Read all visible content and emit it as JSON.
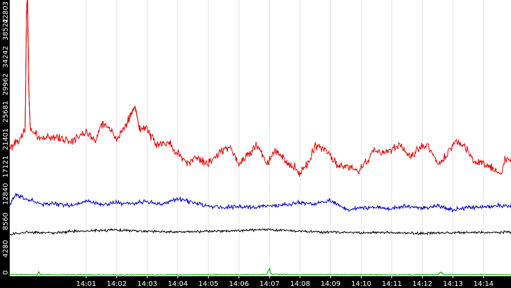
{
  "chart_data": {
    "type": "line",
    "title": "",
    "xlabel": "",
    "ylabel": "",
    "background": "#ffffff",
    "axis_band_color": "#000000",
    "axis_text_color": "#ffffff",
    "grid": true,
    "grid_color": "#e4e4e4",
    "legend": "none",
    "xlim": [
      -1.5,
      14.9
    ],
    "ylim": [
      0,
      42803
    ],
    "x_ticks": [
      {
        "value": 1,
        "label": "14:01"
      },
      {
        "value": 2,
        "label": "14:02"
      },
      {
        "value": 3,
        "label": "14:03"
      },
      {
        "value": 4,
        "label": "14:04"
      },
      {
        "value": 5,
        "label": "14:05"
      },
      {
        "value": 6,
        "label": "14:06"
      },
      {
        "value": 7,
        "label": "14:07"
      },
      {
        "value": 8,
        "label": "14:08"
      },
      {
        "value": 9,
        "label": "14:09"
      },
      {
        "value": 10,
        "label": "14:10"
      },
      {
        "value": 11,
        "label": "14:11"
      },
      {
        "value": 12,
        "label": "14:12"
      },
      {
        "value": 13,
        "label": "14:13"
      },
      {
        "value": 14,
        "label": "14:14"
      }
    ],
    "y_ticks": [
      {
        "value": 0,
        "label": "0"
      },
      {
        "value": 4280,
        "label": "4280"
      },
      {
        "value": 8560,
        "label": "8560"
      },
      {
        "value": 12840,
        "label": "12840"
      },
      {
        "value": 17121,
        "label": "17121"
      },
      {
        "value": 21401,
        "label": "21401"
      },
      {
        "value": 25681,
        "label": "25681"
      },
      {
        "value": 29962,
        "label": "29962"
      },
      {
        "value": 34242,
        "label": "34242"
      },
      {
        "value": 38522,
        "label": "38522"
      },
      {
        "value": 42803,
        "label": "42803"
      }
    ],
    "series": [
      {
        "color": "#e00000",
        "noise": 650,
        "points": [
          [
            -1.5,
            20000
          ],
          [
            -1.0,
            22500
          ],
          [
            -0.95,
            41000
          ],
          [
            -0.92,
            44000
          ],
          [
            -0.88,
            30000
          ],
          [
            -0.83,
            23000
          ],
          [
            -0.5,
            21500
          ],
          [
            0,
            21800
          ],
          [
            0.5,
            21000
          ],
          [
            1.0,
            22500
          ],
          [
            1.3,
            21200
          ],
          [
            1.5,
            23800
          ],
          [
            1.8,
            23000
          ],
          [
            2.0,
            21500
          ],
          [
            2.3,
            23500
          ],
          [
            2.6,
            26500
          ],
          [
            2.75,
            23000
          ],
          [
            3.0,
            23000
          ],
          [
            3.3,
            20500
          ],
          [
            3.7,
            21000
          ],
          [
            4.0,
            19000
          ],
          [
            4.3,
            17700
          ],
          [
            4.6,
            18500
          ],
          [
            5.0,
            17500
          ],
          [
            5.3,
            19000
          ],
          [
            5.7,
            20500
          ],
          [
            6.0,
            17500
          ],
          [
            6.3,
            19000
          ],
          [
            6.6,
            20500
          ],
          [
            6.9,
            17500
          ],
          [
            7.2,
            20000
          ],
          [
            7.5,
            18000
          ],
          [
            7.8,
            17000
          ],
          [
            8.0,
            16000
          ],
          [
            8.3,
            18000
          ],
          [
            8.5,
            20500
          ],
          [
            8.8,
            20000
          ],
          [
            9.2,
            17500
          ],
          [
            9.6,
            17000
          ],
          [
            9.9,
            16500
          ],
          [
            10.2,
            18000
          ],
          [
            10.4,
            20000
          ],
          [
            10.7,
            19000
          ],
          [
            11.0,
            19800
          ],
          [
            11.3,
            20500
          ],
          [
            11.6,
            18500
          ],
          [
            11.9,
            20000
          ],
          [
            12.2,
            20500
          ],
          [
            12.5,
            17500
          ],
          [
            12.8,
            19000
          ],
          [
            13.1,
            21200
          ],
          [
            13.4,
            20000
          ],
          [
            13.7,
            18000
          ],
          [
            14.0,
            17500
          ],
          [
            14.3,
            17000
          ],
          [
            14.55,
            15800
          ],
          [
            14.7,
            18000
          ],
          [
            14.9,
            18500
          ]
        ]
      },
      {
        "color": "#0000c8",
        "noise": 320,
        "points": [
          [
            -1.5,
            11000
          ],
          [
            -1.3,
            12800
          ],
          [
            -0.8,
            11800
          ],
          [
            -0.4,
            11200
          ],
          [
            0,
            11300
          ],
          [
            0.5,
            11000
          ],
          [
            1.0,
            11700
          ],
          [
            1.5,
            11200
          ],
          [
            2.0,
            11500
          ],
          [
            2.5,
            11300
          ],
          [
            3.0,
            11700
          ],
          [
            3.5,
            11200
          ],
          [
            4.0,
            12100
          ],
          [
            4.5,
            11500
          ],
          [
            5.0,
            11000
          ],
          [
            5.5,
            10800
          ],
          [
            6.0,
            10900
          ],
          [
            6.5,
            10700
          ],
          [
            7.0,
            11000
          ],
          [
            7.5,
            11200
          ],
          [
            8.0,
            11500
          ],
          [
            8.5,
            11300
          ],
          [
            9.0,
            11800
          ],
          [
            9.3,
            11000
          ],
          [
            9.6,
            10300
          ],
          [
            10.0,
            10700
          ],
          [
            10.5,
            10800
          ],
          [
            11.0,
            10500
          ],
          [
            11.5,
            10900
          ],
          [
            12.0,
            10600
          ],
          [
            12.5,
            11000
          ],
          [
            13.0,
            10300
          ],
          [
            13.5,
            10800
          ],
          [
            14.0,
            10800
          ],
          [
            14.5,
            11000
          ],
          [
            14.9,
            10900
          ]
        ]
      },
      {
        "color": "#000000",
        "noise": 190,
        "points": [
          [
            -1.5,
            6500
          ],
          [
            -1.0,
            6800
          ],
          [
            0,
            6800
          ],
          [
            1.0,
            7100
          ],
          [
            2.0,
            7200
          ],
          [
            3.0,
            7000
          ],
          [
            4.0,
            6900
          ],
          [
            5.0,
            7000
          ],
          [
            6.0,
            7100
          ],
          [
            7.0,
            7300
          ],
          [
            8.0,
            7000
          ],
          [
            9.0,
            6900
          ],
          [
            10.0,
            6800
          ],
          [
            11.0,
            6800
          ],
          [
            12.0,
            6700
          ],
          [
            13.0,
            6800
          ],
          [
            14.0,
            6800
          ],
          [
            14.9,
            6900
          ]
        ]
      },
      {
        "color": "#00b400",
        "noise": 70,
        "points": [
          [
            -1.5,
            250
          ],
          [
            -1.0,
            280
          ],
          [
            -0.6,
            200
          ],
          [
            -0.55,
            700
          ],
          [
            -0.5,
            250
          ],
          [
            0,
            230
          ],
          [
            3.0,
            220
          ],
          [
            6.9,
            250
          ],
          [
            7.0,
            1200
          ],
          [
            7.05,
            300
          ],
          [
            8.0,
            250
          ],
          [
            11.0,
            230
          ],
          [
            12.5,
            250
          ],
          [
            12.6,
            650
          ],
          [
            12.7,
            300
          ],
          [
            13.0,
            260
          ],
          [
            14.9,
            240
          ]
        ]
      }
    ]
  }
}
